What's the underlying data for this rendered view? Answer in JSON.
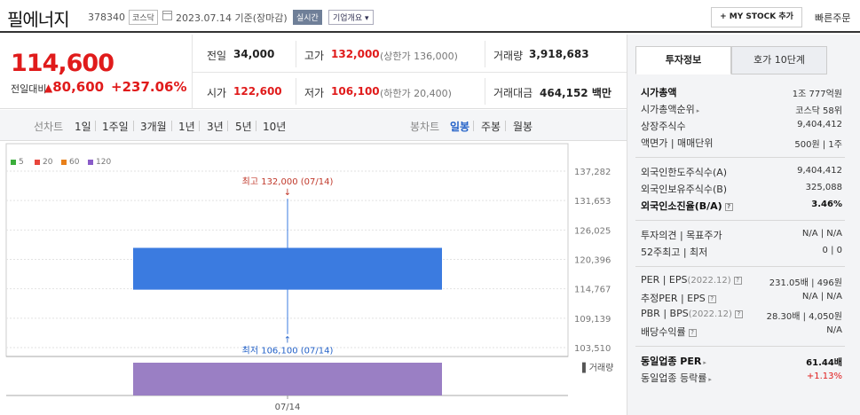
{
  "header": {
    "stock_name": "필에너지",
    "stock_code": "378340",
    "market_badge": "코스닥",
    "date_text": "2023.07.14  기준(장마감)",
    "realtime_badge": "실시간",
    "company_overview": "기업개요 ▾",
    "mystock_button": "+ MY STOCK 추가",
    "quick_order": "빠른주문"
  },
  "quote": {
    "price": "114,600",
    "change_label": "전일대비",
    "change_abs": "80,600",
    "change_pct": "+237.06%",
    "prev_close_label": "전일",
    "prev_close": "34,000",
    "open_label": "시가",
    "open": "122,600",
    "high_label": "고가",
    "high": "132,000",
    "upper_limit": "(상한가 136,000)",
    "low_label": "저가",
    "low": "106,100",
    "lower_limit": "(하한가 20,400)",
    "volume_label": "거래량",
    "volume": "3,918,683",
    "value_label": "거래대금",
    "value": "464,152 백만"
  },
  "periods": {
    "line_chart_label": "선차트",
    "line_items": [
      "1일",
      "1주일",
      "3개월",
      "1년",
      "3년",
      "5년",
      "10년"
    ],
    "candle_label": "봉차트",
    "candle_items": [
      "일봉",
      "주봉",
      "월봉"
    ],
    "active_candle": "일봉"
  },
  "chart_data": {
    "type": "candlestick",
    "legend": [
      {
        "name": "5",
        "color": "#3cae3c"
      },
      {
        "name": "20",
        "color": "#e8453c"
      },
      {
        "name": "60",
        "color": "#e8801a"
      },
      {
        "name": "120",
        "color": "#8a5cc9"
      }
    ],
    "y_ticks": [
      "137,282",
      "131,653",
      "126,025",
      "120,396",
      "114,767",
      "109,139",
      "103,510"
    ],
    "ylim": [
      103510,
      137282
    ],
    "candles": [
      {
        "date": "07/14",
        "open": 122600,
        "high": 132000,
        "low": 106100,
        "close": 114600,
        "volume": 3918683,
        "color": "#3b7be0"
      }
    ],
    "high_annotation": "최고 132,000 (07/14)",
    "low_annotation": "최저 106,100 (07/14)",
    "volume_label": "▌거래량",
    "volume_color": "#9a7fc4",
    "x_label": "07/14"
  },
  "right_panel": {
    "tab_invest": "투자정보",
    "tab_orderbook": "호가 10단계",
    "rows1": [
      {
        "label": "시가총액",
        "value": "1조 777억원"
      },
      {
        "label": "시가총액순위",
        "value": "코스닥 58위"
      },
      {
        "label": "상장주식수",
        "value": "9,404,412"
      },
      {
        "label": "액면가 | 매매단위",
        "value": "500원  |  1주"
      }
    ],
    "rows2": [
      {
        "label": "외국인한도주식수(A)",
        "value": "9,404,412"
      },
      {
        "label": "외국인보유주식수(B)",
        "value": "325,088"
      },
      {
        "label": "외국인소진율(B/A)",
        "value": "3.46%"
      }
    ],
    "rows3": [
      {
        "label": "투자의견 | 목표주가",
        "value": "N/A  |  N/A"
      },
      {
        "label": "52주최고 | 최저",
        "value": "0  |  0"
      }
    ],
    "rows4": [
      {
        "label": "PER | EPS",
        "sub": "(2022.12)",
        "value": "231.05배  |  496원"
      },
      {
        "label": "추정PER | EPS",
        "value": "N/A  |  N/A"
      },
      {
        "label": "PBR | BPS",
        "sub": "(2022.12)",
        "value": "28.30배  |  4,050원"
      },
      {
        "label": "배당수익률",
        "value": "N/A"
      }
    ],
    "rows5": [
      {
        "label": "동일업종 PER",
        "value": "61.44배"
      },
      {
        "label": "동일업종 등락률",
        "value": "+1.13%"
      }
    ],
    "q_mark": "?",
    "arrow": "▸"
  }
}
